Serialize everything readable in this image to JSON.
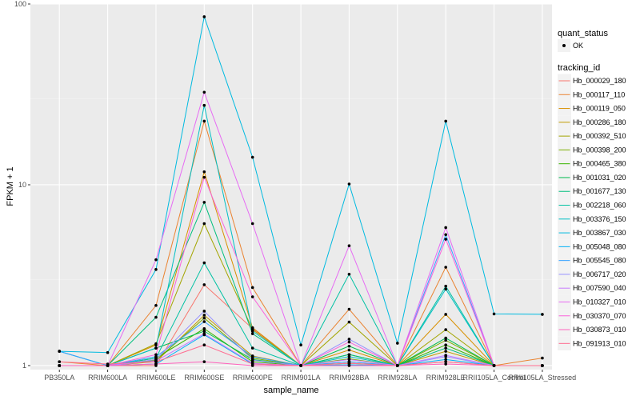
{
  "chart_data": {
    "type": "line",
    "xlabel": "sample_name",
    "ylabel": "FPKM + 1",
    "yscale": "log10",
    "ylim": [
      0.95,
      100
    ],
    "yticks": [
      1,
      10,
      100
    ],
    "ytick_labels": [
      "1",
      "10",
      "100"
    ],
    "grid": true,
    "legend_position": "right",
    "categories": [
      "PB350LA",
      "RRIM600LA",
      "RRIM600LE",
      "RRIM600SE",
      "RRIM600PE",
      "RRIM901LA",
      "RRIM928BA",
      "RRIM928LA",
      "RRIM928LE",
      "RRII105LA_Control",
      "RRII105LA_Stressed"
    ],
    "shape_legend": {
      "title": "quant_status",
      "entries": [
        "OK"
      ]
    },
    "color_legend_title": "tracking_id",
    "series": [
      {
        "name": "Hb_000029_180",
        "color": "#F8766D",
        "values": [
          1.0,
          1.0,
          1.0,
          2.8,
          1.6,
          1.0,
          1.05,
          1.0,
          1.05,
          1.0,
          1.0
        ]
      },
      {
        "name": "Hb_000117_110",
        "color": "#EA8331",
        "values": [
          1.05,
          1.0,
          2.15,
          22.5,
          2.7,
          1.0,
          2.05,
          1.0,
          3.5,
          1.0,
          1.1
        ]
      },
      {
        "name": "Hb_000119_050",
        "color": "#D89000",
        "values": [
          1.0,
          1.0,
          1.3,
          11.8,
          1.62,
          1.0,
          1.22,
          1.0,
          1.92,
          1.0,
          1.0
        ]
      },
      {
        "name": "Hb_000286_180",
        "color": "#C09B00",
        "values": [
          1.0,
          1.0,
          1.05,
          1.9,
          1.13,
          1.0,
          1.03,
          1.0,
          1.2,
          1.0,
          1.0
        ]
      },
      {
        "name": "Hb_000392_510",
        "color": "#A3A500",
        "values": [
          1.0,
          1.0,
          1.32,
          6.1,
          1.58,
          1.0,
          1.74,
          1.0,
          1.58,
          1.0,
          1.0
        ]
      },
      {
        "name": "Hb_000398_200",
        "color": "#7CAE00",
        "values": [
          1.0,
          1.0,
          1.07,
          1.83,
          1.1,
          1.0,
          1.09,
          1.0,
          1.38,
          1.0,
          1.0
        ]
      },
      {
        "name": "Hb_000465_380",
        "color": "#39B600",
        "values": [
          1.0,
          1.0,
          1.1,
          1.6,
          1.05,
          1.0,
          1.15,
          1.0,
          1.3,
          1.0,
          1.0
        ]
      },
      {
        "name": "Hb_001031_020",
        "color": "#00BB4E",
        "values": [
          1.0,
          1.0,
          1.25,
          1.55,
          1.08,
          1.0,
          1.28,
          1.0,
          1.42,
          1.0,
          1.0
        ]
      },
      {
        "name": "Hb_001677_130",
        "color": "#00BF7D",
        "values": [
          1.0,
          1.0,
          1.85,
          8.0,
          1.5,
          1.0,
          1.15,
          1.0,
          1.25,
          1.0,
          1.0
        ]
      },
      {
        "name": "Hb_002218_060",
        "color": "#00C1A3",
        "values": [
          1.0,
          1.0,
          1.1,
          3.7,
          1.25,
          1.0,
          3.2,
          1.0,
          2.75,
          1.0,
          1.0
        ]
      },
      {
        "name": "Hb_003376_150",
        "color": "#00BFC4",
        "values": [
          1.2,
          1.0,
          1.25,
          27.5,
          1.55,
          1.0,
          1.12,
          1.0,
          2.65,
          1.0,
          1.0
        ]
      },
      {
        "name": "Hb_003867_030",
        "color": "#00BAE0",
        "values": [
          1.2,
          1.18,
          3.4,
          85.0,
          14.2,
          1.3,
          10.1,
          1.33,
          22.5,
          1.93,
          1.92
        ]
      },
      {
        "name": "Hb_005048_080",
        "color": "#00B0F6",
        "values": [
          1.0,
          1.0,
          1.02,
          1.48,
          1.02,
          1.0,
          1.01,
          1.0,
          1.08,
          1.0,
          1.0
        ]
      },
      {
        "name": "Hb_005545_080",
        "color": "#35A2FF",
        "values": [
          1.2,
          1.0,
          1.12,
          1.75,
          1.12,
          1.0,
          1.05,
          1.0,
          5.3,
          1.0,
          1.0
        ]
      },
      {
        "name": "Hb_006717_020",
        "color": "#9590FF",
        "values": [
          1.0,
          1.0,
          1.08,
          2.0,
          1.07,
          1.0,
          1.4,
          1.0,
          1.12,
          1.0,
          1.0
        ]
      },
      {
        "name": "Hb_007590_040",
        "color": "#C77CFF",
        "values": [
          1.0,
          1.0,
          1.06,
          1.5,
          1.03,
          1.0,
          1.08,
          1.0,
          1.14,
          1.0,
          1.0
        ]
      },
      {
        "name": "Hb_010327_010",
        "color": "#E76BF3",
        "values": [
          1.0,
          1.0,
          3.85,
          32.5,
          6.1,
          1.0,
          4.6,
          1.0,
          5.8,
          1.0,
          1.0
        ]
      },
      {
        "name": "Hb_030370_070",
        "color": "#FA62DB",
        "values": [
          1.0,
          1.0,
          1.15,
          11.0,
          2.4,
          1.0,
          1.35,
          1.0,
          5.0,
          1.0,
          1.0
        ]
      },
      {
        "name": "Hb_030873_010",
        "color": "#FF62BC",
        "values": [
          1.0,
          1.0,
          1.02,
          1.05,
          1.0,
          1.0,
          1.0,
          1.0,
          1.02,
          1.0,
          1.0
        ]
      },
      {
        "name": "Hb_091913_010",
        "color": "#FF6C91",
        "values": [
          1.05,
          1.02,
          1.05,
          1.3,
          1.02,
          1.0,
          1.03,
          1.0,
          1.05,
          1.0,
          1.0
        ]
      }
    ]
  }
}
